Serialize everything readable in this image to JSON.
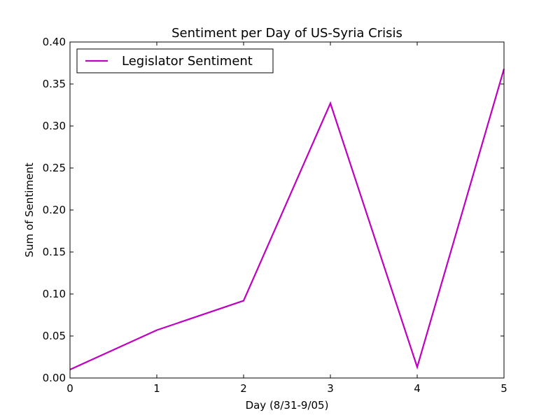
{
  "chart_data": {
    "type": "line",
    "title": "Sentiment per Day of US-Syria Crisis",
    "xlabel": "Day (8/31-9/05)",
    "ylabel": "Sum of Sentiment",
    "xlim": [
      0,
      5
    ],
    "ylim": [
      0.0,
      0.4
    ],
    "x_ticks": [
      "0",
      "1",
      "2",
      "3",
      "4",
      "5"
    ],
    "y_ticks": [
      "0.00",
      "0.05",
      "0.10",
      "0.15",
      "0.20",
      "0.25",
      "0.30",
      "0.35",
      "0.40"
    ],
    "grid": false,
    "legend_position": "upper-left",
    "series": [
      {
        "name": "Legislator Sentiment",
        "color": "#bf00bf",
        "x": [
          0,
          1,
          2,
          3,
          4,
          5
        ],
        "y": [
          0.01,
          0.057,
          0.092,
          0.327,
          0.013,
          0.368
        ]
      }
    ]
  }
}
